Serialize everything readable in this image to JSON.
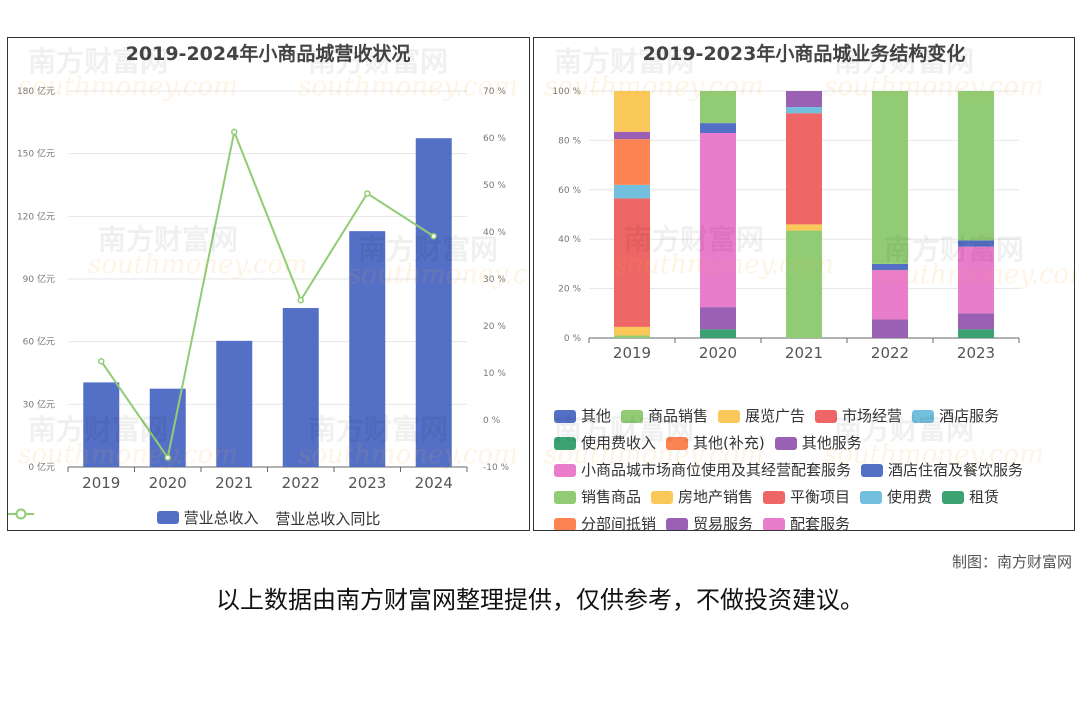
{
  "watermark": {
    "cn": "南方财富网",
    "en": "southmoney.com"
  },
  "credit": "制图：南方财富网",
  "disclaimer": "以上数据由南方财富网整理提供，仅供参考，不做投资建议。",
  "colors": {
    "bar": "#5470c6",
    "line": "#91cc75",
    "grid": "#e6e6e6",
    "axis": "#666666"
  },
  "chart_data": [
    {
      "type": "bar",
      "title": "2019-2024年小商品城营收状况",
      "categories": [
        "2019",
        "2020",
        "2021",
        "2022",
        "2023",
        "2024"
      ],
      "series": [
        {
          "name": "营业总收入",
          "type": "bar",
          "axis": "left",
          "values": [
            40.5,
            37.5,
            60.4,
            76.1,
            112.9,
            157.4
          ]
        },
        {
          "name": "营业总收入同比",
          "type": "line",
          "axis": "right",
          "values": [
            12.5,
            -8.0,
            61.3,
            25.5,
            48.2,
            39.1
          ]
        }
      ],
      "y_left": {
        "ticks": [
          "0 亿元",
          "30 亿元",
          "60 亿元",
          "90 亿元",
          "120 亿元",
          "150 亿元",
          "180 亿元"
        ],
        "ylim": [
          0,
          180
        ]
      },
      "y_right": {
        "ticks": [
          "-10 %",
          "0 %",
          "10 %",
          "20 %",
          "30 %",
          "40 %",
          "50 %",
          "60 %",
          "70 %"
        ],
        "ylim": [
          -10,
          70
        ]
      },
      "legend": "bottom"
    },
    {
      "type": "bar",
      "stacked": true,
      "title": "2019-2023年小商品城业务结构变化",
      "categories": [
        "2019",
        "2020",
        "2021",
        "2022",
        "2023"
      ],
      "y_ticks": [
        "0 %",
        "20 %",
        "40 %",
        "60 %",
        "80 %",
        "100 %"
      ],
      "ylim": [
        0,
        100
      ],
      "legend": "bottom",
      "series": [
        {
          "name": "其他",
          "color": "#5470c6",
          "values": [
            0,
            0,
            0,
            0,
            0
          ]
        },
        {
          "name": "商品销售",
          "color": "#91cc75",
          "values": [
            1.0,
            0,
            0,
            0,
            0
          ]
        },
        {
          "name": "展览广告",
          "color": "#fac858",
          "values": [
            3.5,
            0,
            0,
            0,
            0
          ]
        },
        {
          "name": "市场经营",
          "color": "#ee6666",
          "values": [
            52.0,
            0,
            0,
            0,
            0
          ]
        },
        {
          "name": "酒店服务",
          "color": "#73c0de",
          "values": [
            5.5,
            0,
            0,
            0,
            0
          ]
        },
        {
          "name": "使用费收入",
          "color": "#3ba272",
          "values": [
            0,
            3.5,
            0,
            0,
            0
          ]
        },
        {
          "name": "其他(补充)",
          "color": "#fc8452",
          "values": [
            18.5,
            0,
            0,
            0,
            0
          ]
        },
        {
          "name": "其他服务",
          "color": "#9a60b4",
          "values": [
            3.0,
            9.0,
            0,
            0,
            0
          ]
        },
        {
          "name": "小商品城市场商位使用及其经营配套服务",
          "color": "#ea7ccc",
          "values": [
            0,
            70.5,
            0,
            0,
            0
          ]
        },
        {
          "name": "酒店住宿及餐饮服务",
          "color": "#5470c6",
          "values": [
            0,
            4.0,
            0,
            0,
            0
          ]
        },
        {
          "name": "销售商品",
          "color": "#91cc75",
          "values": [
            0,
            13.0,
            43.5,
            0,
            0
          ]
        },
        {
          "name": "房地产销售",
          "color": "#fac858",
          "values": [
            16.5,
            0,
            2.5,
            0,
            0
          ]
        },
        {
          "name": "平衡项目",
          "color": "#ee6666",
          "values": [
            0,
            0,
            45.0,
            0,
            0
          ]
        },
        {
          "name": "使用费",
          "color": "#73c0de",
          "values": [
            0,
            0,
            2.5,
            0,
            0
          ]
        },
        {
          "name": "租赁",
          "color": "#3ba272",
          "values": [
            0,
            0,
            0,
            0,
            3.5
          ]
        },
        {
          "name": "分部间抵销",
          "color": "#fc8452",
          "values": [
            0,
            0,
            0,
            0,
            0
          ]
        },
        {
          "name": "贸易服务",
          "color": "#9a60b4",
          "values": [
            0,
            0,
            6.5,
            7.5,
            6.5
          ]
        },
        {
          "name": "配套服务",
          "color": "#ea7ccc",
          "values": [
            0,
            0,
            0,
            20.0,
            27.0
          ]
        },
        {
          "name": "酒店住宿及餐饮服务(2022-2023)",
          "color": "#5470c6",
          "values": [
            0,
            0,
            0,
            2.5,
            2.5
          ]
        },
        {
          "name": "商品销售(2022-2023)",
          "color": "#91cc75",
          "values": [
            0,
            0,
            0,
            70.0,
            60.5
          ]
        }
      ]
    }
  ]
}
